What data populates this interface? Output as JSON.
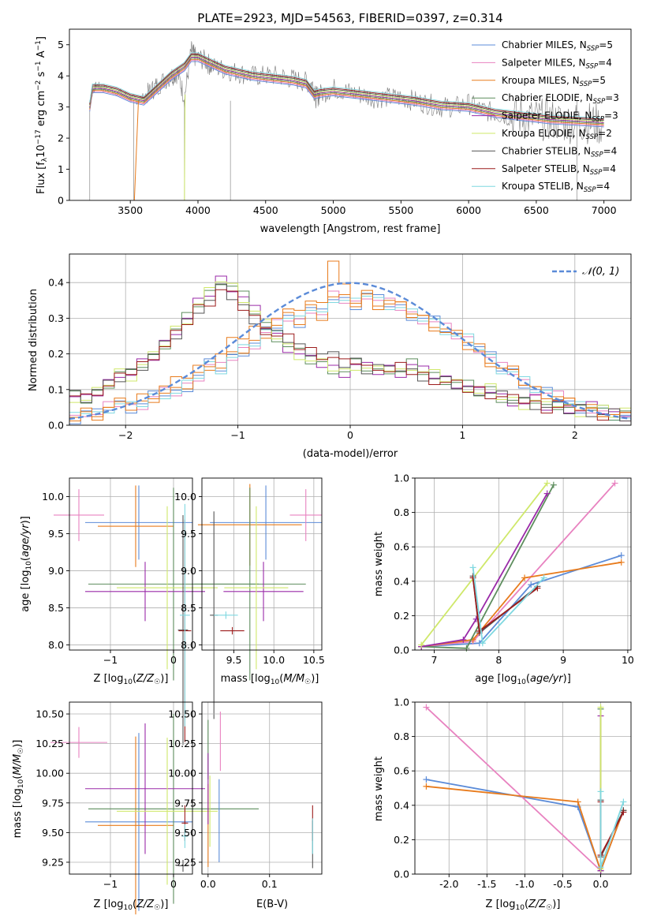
{
  "figure": {
    "title": "PLATE=2923, MJD=54563, FIBERID=0397, z=0.314"
  },
  "colors": [
    "#5b8bd8",
    "#e882c0",
    "#e87b1c",
    "#5d8d5d",
    "#9a2aa8",
    "#cfe86a",
    "#555555",
    "#9c1c1c",
    "#7fd8e0"
  ],
  "legend_spectrum": [
    {
      "label": "Chabrier MILES, N",
      "sub": "SSP",
      "n": "=5"
    },
    {
      "label": "Salpeter MILES, N",
      "sub": "SSP",
      "n": "=4"
    },
    {
      "label": "Kroupa MILES, N",
      "sub": "SSP",
      "n": "=5"
    },
    {
      "label": "Chabrier ELODIE, N",
      "sub": "SSP",
      "n": "=3"
    },
    {
      "label": "Salpeter ELODIE, N",
      "sub": "SSP",
      "n": "=3"
    },
    {
      "label": "Kroupa ELODIE, N",
      "sub": "SSP",
      "n": "=2"
    },
    {
      "label": "Chabrier STELIB, N",
      "sub": "SSP",
      "n": "=4"
    },
    {
      "label": "Salpeter STELIB, N",
      "sub": "SSP",
      "n": "=4"
    },
    {
      "label": "Kroupa STELIB, N",
      "sub": "SSP",
      "n": "=4"
    }
  ],
  "chart_data": [
    {
      "id": "spectrum",
      "type": "line",
      "xlabel": "wavelength [Angstrom, rest frame]",
      "ylabel": "Flux [f_λ10^-17 erg cm^-2 s^-1 A^-1]",
      "xlim": [
        3050,
        7200
      ],
      "ylim": [
        0,
        5.5
      ],
      "xticks": [
        3500,
        4000,
        4500,
        5000,
        5500,
        6000,
        6500,
        7000
      ],
      "yticks": [
        0,
        1,
        2,
        3,
        4,
        5
      ],
      "data_series": {
        "name": "",
        "x": [
          3200,
          3220,
          3250,
          3300,
          3400,
          3500,
          3560,
          3650,
          3700,
          3800,
          3850,
          3900,
          3950,
          3980,
          4050,
          4100,
          4200,
          4300,
          4400,
          4500,
          4600,
          4700,
          4800,
          4850,
          4870,
          4900,
          5000,
          5100,
          5200,
          5300,
          5400,
          5500,
          5600,
          5700,
          5800,
          5900,
          6000,
          6100,
          6200,
          6300,
          6400,
          6500,
          6600,
          6700,
          6800,
          6900,
          7000
        ],
        "y": [
          3.0,
          3.5,
          3.7,
          3.6,
          3.5,
          3.3,
          3.2,
          3.5,
          3.7,
          4.0,
          4.1,
          3.3,
          4.8,
          4.6,
          4.5,
          4.3,
          4.2,
          4.1,
          4.0,
          4.0,
          4.0,
          3.9,
          3.8,
          3.7,
          3.3,
          3.4,
          3.6,
          3.5,
          3.4,
          3.3,
          3.3,
          3.3,
          3.2,
          3.1,
          3.0,
          3.0,
          3.1,
          2.9,
          2.8,
          2.7,
          2.7,
          2.6,
          2.6,
          2.5,
          2.5,
          2.5,
          2.4
        ]
      },
      "model_series": [
        {
          "x": [
            3200,
            3220,
            3300,
            3400,
            3500,
            3600,
            3700,
            3800,
            3900,
            3950,
            4000,
            4100,
            4200,
            4300,
            4400,
            4500,
            4600,
            4700,
            4800,
            4860,
            4900,
            5000,
            5200,
            5400,
            5600,
            5800,
            6000,
            6200,
            6400,
            6600,
            6800,
            7000
          ],
          "y": [
            3.0,
            3.6,
            3.6,
            3.5,
            3.3,
            3.2,
            3.6,
            4.0,
            4.3,
            4.6,
            4.6,
            4.4,
            4.2,
            4.1,
            4.0,
            3.95,
            3.9,
            3.85,
            3.75,
            3.4,
            3.45,
            3.5,
            3.4,
            3.3,
            3.2,
            3.05,
            3.0,
            2.8,
            2.7,
            2.6,
            2.55,
            2.5
          ]
        }
      ]
    },
    {
      "id": "residuals",
      "type": "line",
      "xlabel": "(data-model)/error",
      "ylabel": "Normed distribution",
      "xlim": [
        -2.5,
        2.5
      ],
      "ylim": [
        0,
        0.48
      ],
      "xticks": [
        -2,
        -1,
        0,
        1,
        2
      ],
      "yticks": [
        0.0,
        0.1,
        0.2,
        0.3,
        0.4
      ],
      "legend": "𝒩(0, 1)",
      "gaussian": {
        "mu": 0,
        "sigma": 1,
        "color": "#5b8bd8"
      },
      "hist_bins": [
        -2.5,
        2.5,
        50
      ],
      "hist_series": [
        [
          0.02,
          0.04,
          0.03,
          0.05,
          0.06,
          0.05,
          0.06,
          0.08,
          0.09,
          0.09,
          0.11,
          0.14,
          0.17,
          0.16,
          0.19,
          0.21,
          0.23,
          0.26,
          0.28,
          0.3,
          0.29,
          0.33,
          0.31,
          0.36,
          0.35,
          0.34,
          0.37,
          0.35,
          0.34,
          0.33,
          0.31,
          0.3,
          0.29,
          0.27,
          0.25,
          0.24,
          0.22,
          0.19,
          0.16,
          0.15,
          0.12,
          0.1,
          0.09,
          0.08,
          0.06,
          0.05,
          0.05,
          0.04,
          0.03,
          0.02
        ],
        [
          0.08,
          0.07,
          0.09,
          0.12,
          0.15,
          0.14,
          0.17,
          0.19,
          0.23,
          0.27,
          0.3,
          0.34,
          0.37,
          0.41,
          0.39,
          0.36,
          0.32,
          0.28,
          0.25,
          0.22,
          0.2,
          0.18,
          0.17,
          0.16,
          0.15,
          0.17,
          0.16,
          0.15,
          0.16,
          0.15,
          0.17,
          0.15,
          0.14,
          0.13,
          0.12,
          0.11,
          0.09,
          0.1,
          0.08,
          0.07,
          0.06,
          0.07,
          0.05,
          0.06,
          0.05,
          0.04,
          0.05,
          0.04,
          0.03,
          0.04
        ],
        [
          0.09,
          0.08,
          0.1,
          0.11,
          0.13,
          0.15,
          0.17,
          0.2,
          0.22,
          0.25,
          0.29,
          0.33,
          0.35,
          0.38,
          0.36,
          0.33,
          0.3,
          0.27,
          0.25,
          0.24,
          0.22,
          0.21,
          0.2,
          0.19,
          0.17,
          0.18,
          0.16,
          0.17,
          0.15,
          0.16,
          0.15,
          0.14,
          0.13,
          0.12,
          0.11,
          0.1,
          0.1,
          0.09,
          0.08,
          0.07,
          0.07,
          0.06,
          0.05,
          0.05,
          0.04,
          0.05,
          0.04,
          0.03,
          0.03,
          0.02
        ],
        [
          0.03,
          0.03,
          0.04,
          0.05,
          0.05,
          0.07,
          0.08,
          0.09,
          0.11,
          0.12,
          0.14,
          0.16,
          0.18,
          0.2,
          0.23,
          0.25,
          0.27,
          0.29,
          0.3,
          0.31,
          0.33,
          0.34,
          0.36,
          0.46,
          0.38,
          0.35,
          0.36,
          0.34,
          0.35,
          0.33,
          0.32,
          0.3,
          0.28,
          0.26,
          0.24,
          0.22,
          0.2,
          0.18,
          0.16,
          0.14,
          0.12,
          0.1,
          0.09,
          0.07,
          0.06,
          0.05,
          0.04,
          0.04,
          0.03,
          0.02
        ]
      ]
    },
    {
      "id": "age_vs_Z",
      "type": "scatter",
      "xlabel": "Z [log10(Z/Z☉)]",
      "ylabel": "age  [log10(age/yr)]",
      "xlim": [
        -1.65,
        0.3
      ],
      "ylim": [
        7.93,
        10.25
      ],
      "xticks": [
        -1,
        0
      ],
      "yticks": [
        8.0,
        8.5,
        9.0,
        9.5,
        10.0
      ],
      "points": [
        {
          "x": -0.55,
          "y": 9.65,
          "ex": 0.85,
          "ey": 0.5,
          "color": 0
        },
        {
          "x": -1.5,
          "y": 9.75,
          "ex": 0.4,
          "ey": 0.35,
          "color": 1
        },
        {
          "x": -0.6,
          "y": 9.6,
          "ex": 0.6,
          "ey": 0.55,
          "color": 2
        },
        {
          "x": 0.0,
          "y": 8.82,
          "ex": 1.35,
          "ey": 1.3,
          "color": 3
        },
        {
          "x": -0.45,
          "y": 8.72,
          "ex": 0.95,
          "ey": 0.4,
          "color": 4
        },
        {
          "x": -0.1,
          "y": 8.77,
          "ex": 0.8,
          "ey": 1.1,
          "color": 5
        },
        {
          "x": 0.15,
          "y": 8.2,
          "ex": 0.08,
          "ey": 1.55,
          "color": 6
        },
        {
          "x": 0.18,
          "y": 8.19,
          "ex": 0.1,
          "ey": 1.5,
          "color": 7
        },
        {
          "x": 0.18,
          "y": 8.4,
          "ex": 0.08,
          "ey": 1.5,
          "color": 8
        }
      ]
    },
    {
      "id": "age_vs_mass",
      "type": "scatter",
      "xlabel": "mass [log10(M/M☉)]",
      "ylabel": "",
      "xlim": [
        9.1,
        10.6
      ],
      "ylim": [
        7.93,
        10.25
      ],
      "xticks": [
        9.5,
        10.0,
        10.5
      ],
      "yticks": [
        8.0,
        8.5,
        9.0,
        9.5,
        10.0
      ],
      "points": [
        {
          "x": 9.9,
          "y": 9.65,
          "ex": 0.7,
          "ey": 0.5,
          "color": 0
        },
        {
          "x": 10.4,
          "y": 9.75,
          "ex": 0.2,
          "ey": 0.35,
          "color": 1
        },
        {
          "x": 9.7,
          "y": 9.62,
          "ex": 0.65,
          "ey": 0.55,
          "color": 2
        },
        {
          "x": 9.7,
          "y": 8.82,
          "ex": 0.7,
          "ey": 1.3,
          "color": 3
        },
        {
          "x": 9.87,
          "y": 8.72,
          "ex": 0.5,
          "ey": 0.4,
          "color": 4
        },
        {
          "x": 9.78,
          "y": 8.77,
          "ex": 0.4,
          "ey": 1.1,
          "color": 5
        },
        {
          "x": 9.25,
          "y": 8.4,
          "ex": 0.05,
          "ey": 1.4,
          "color": 6
        },
        {
          "x": 9.48,
          "y": 8.19,
          "ex": 0.15,
          "ey": 0.05,
          "color": 7
        },
        {
          "x": 9.4,
          "y": 8.4,
          "ex": 0.15,
          "ey": 0.05,
          "color": 8
        }
      ]
    },
    {
      "id": "weight_vs_age",
      "type": "line",
      "xlabel": "age  [log10(age/yr)]",
      "ylabel": "mass weight",
      "xlim": [
        6.7,
        10.05
      ],
      "ylim": [
        0,
        1.0
      ],
      "xticks": [
        7,
        8,
        9,
        10
      ],
      "yticks": [
        0.0,
        0.2,
        0.4,
        0.6,
        0.8,
        1.0
      ],
      "series": [
        {
          "color": 0,
          "x": [
            6.8,
            7.7,
            8.5,
            9.9
          ],
          "y": [
            0.02,
            0.04,
            0.38,
            0.55
          ]
        },
        {
          "color": 1,
          "x": [
            6.8,
            7.6,
            9.8
          ],
          "y": [
            0.02,
            0.05,
            0.97
          ]
        },
        {
          "color": 2,
          "x": [
            6.8,
            7.6,
            8.4,
            9.9
          ],
          "y": [
            0.02,
            0.06,
            0.42,
            0.51
          ]
        },
        {
          "color": 3,
          "x": [
            6.8,
            7.5,
            8.85
          ],
          "y": [
            0.02,
            0.01,
            0.96
          ]
        },
        {
          "color": 4,
          "x": [
            6.8,
            7.45,
            7.65,
            8.75
          ],
          "y": [
            0.02,
            0.06,
            0.18,
            0.91
          ]
        },
        {
          "color": 5,
          "x": [
            6.8,
            8.75
          ],
          "y": [
            0.03,
            0.97
          ]
        },
        {
          "color": 6,
          "x": [
            7.6,
            7.7,
            8.6
          ],
          "y": [
            0.43,
            0.1,
            0.37
          ]
        },
        {
          "color": 7,
          "x": [
            7.6,
            7.7,
            8.6
          ],
          "y": [
            0.42,
            0.11,
            0.36
          ]
        },
        {
          "color": 8,
          "x": [
            7.6,
            7.75,
            8.7
          ],
          "y": [
            0.48,
            0.04,
            0.42
          ]
        }
      ]
    },
    {
      "id": "mass_vs_Z",
      "type": "scatter",
      "xlabel": "Z [log10(Z/Z☉)]",
      "ylabel": "mass [log10(M/M☉)]",
      "xlim": [
        -1.65,
        0.3
      ],
      "ylim": [
        9.15,
        10.6
      ],
      "xticks": [
        -1,
        0
      ],
      "yticks": [
        9.25,
        9.5,
        9.75,
        10.0,
        10.25,
        10.5
      ],
      "points": [
        {
          "x": -0.55,
          "y": 9.59,
          "ex": 0.85,
          "ey": 0.75,
          "color": 0
        },
        {
          "x": -1.5,
          "y": 10.26,
          "ex": 0.45,
          "ey": 0.13,
          "color": 1
        },
        {
          "x": -0.6,
          "y": 9.56,
          "ex": 0.6,
          "ey": 0.75,
          "color": 2
        },
        {
          "x": 0.0,
          "y": 9.7,
          "ex": 1.35,
          "ey": 0.8,
          "color": 3
        },
        {
          "x": -0.45,
          "y": 9.87,
          "ex": 0.95,
          "ey": 0.55,
          "color": 4
        },
        {
          "x": -0.1,
          "y": 9.68,
          "ex": 0.8,
          "ey": 0.62,
          "color": 5
        },
        {
          "x": 0.15,
          "y": 9.22,
          "ex": 0.08,
          "ey": 0.05,
          "color": 6
        },
        {
          "x": 0.18,
          "y": 9.58,
          "ex": 0.05,
          "ey": 0.15,
          "color": 7
        },
        {
          "x": 0.18,
          "y": 9.47,
          "ex": 0.05,
          "ey": 0.1,
          "color": 8
        }
      ]
    },
    {
      "id": "mass_vs_EBV",
      "type": "scatter",
      "xlabel": "E(B-V)",
      "ylabel": "",
      "xlim": [
        -0.01,
        0.185
      ],
      "ylim": [
        9.15,
        10.6
      ],
      "xticks": [
        0.0,
        0.1
      ],
      "yticks": [
        9.25,
        9.5,
        9.75,
        10.0,
        10.25,
        10.5
      ],
      "points": [
        {
          "x": 0.018,
          "y": 9.6,
          "ey": 0.35,
          "color": 0
        },
        {
          "x": 0.02,
          "y": 10.27,
          "ey": 0.25,
          "color": 1
        },
        {
          "x": 0.0,
          "y": 9.56,
          "ey": 0.35,
          "color": 2
        },
        {
          "x": 0.0,
          "y": 10.2,
          "ey": 0.25,
          "color": 3
        },
        {
          "x": 0.0,
          "y": 9.87,
          "ey": 0.3,
          "color": 4
        },
        {
          "x": 0.003,
          "y": 9.68,
          "ey": 0.3,
          "color": 5
        },
        {
          "x": 0.17,
          "y": 9.4,
          "ey": 0.2,
          "color": 6
        },
        {
          "x": 0.17,
          "y": 9.58,
          "ey": 0.15,
          "color": 7
        },
        {
          "x": 0.17,
          "y": 9.47,
          "ey": 0.15,
          "color": 8
        }
      ]
    },
    {
      "id": "weight_vs_Z",
      "type": "line",
      "xlabel": "Z [log10(Z/Z☉)]",
      "ylabel": "mass weight",
      "xlim": [
        -2.45,
        0.4
      ],
      "ylim": [
        0,
        1.0
      ],
      "xticks": [
        -2.0,
        -1.5,
        -1.0,
        -0.5,
        0.0
      ],
      "yticks": [
        0.0,
        0.2,
        0.4,
        0.6,
        0.8,
        1.0
      ],
      "series": [
        {
          "color": 0,
          "x": [
            -2.3,
            -0.3,
            0.0,
            0.3
          ],
          "y": [
            0.55,
            0.39,
            0.02,
            0.37
          ]
        },
        {
          "color": 1,
          "x": [
            -2.3,
            0.0
          ],
          "y": [
            0.97,
            0.02
          ]
        },
        {
          "color": 2,
          "x": [
            -2.3,
            -0.3,
            0.0,
            0.3
          ],
          "y": [
            0.51,
            0.42,
            0.02,
            0.37
          ]
        },
        {
          "color": 3,
          "x": [
            0.0,
            0.0
          ],
          "y": [
            0.02,
            0.96
          ]
        },
        {
          "color": 4,
          "x": [
            0.0,
            0.0
          ],
          "y": [
            0.02,
            0.92
          ]
        },
        {
          "color": 5,
          "x": [
            0.0,
            0.0
          ],
          "y": [
            0.03,
            0.97
          ]
        },
        {
          "color": 6,
          "x": [
            0.0,
            0.0,
            0.3
          ],
          "y": [
            0.43,
            0.1,
            0.37
          ]
        },
        {
          "color": 7,
          "x": [
            0.0,
            0.0,
            0.3
          ],
          "y": [
            0.42,
            0.11,
            0.36
          ]
        },
        {
          "color": 8,
          "x": [
            0.0,
            0.0,
            0.3
          ],
          "y": [
            0.48,
            0.04,
            0.42
          ]
        }
      ]
    }
  ]
}
